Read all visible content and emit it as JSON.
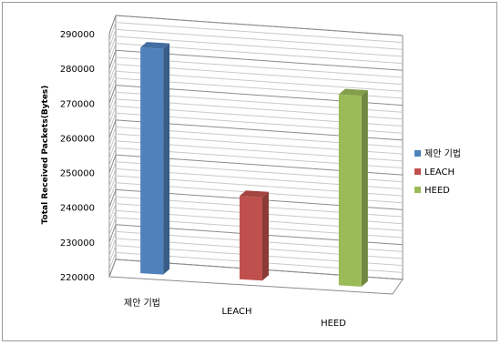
{
  "chart_data": {
    "type": "bar",
    "categories": [
      "제안 기법",
      "LEACH",
      "HEED"
    ],
    "values": [
      285000,
      244000,
      275000
    ],
    "ylabel": "Total Received Packets(Bytes)",
    "ylim": [
      220000,
      290000
    ],
    "yticks": [
      "290000",
      "280000",
      "270000",
      "260000",
      "250000",
      "240000",
      "230000",
      "220000"
    ],
    "grid": true,
    "legend": "right",
    "legend_entries": [
      "제안 기법",
      "LEACH",
      "HEED"
    ],
    "colors": [
      "#4f81bd",
      "#c0504d",
      "#9bbb59"
    ],
    "projection": "3d"
  }
}
